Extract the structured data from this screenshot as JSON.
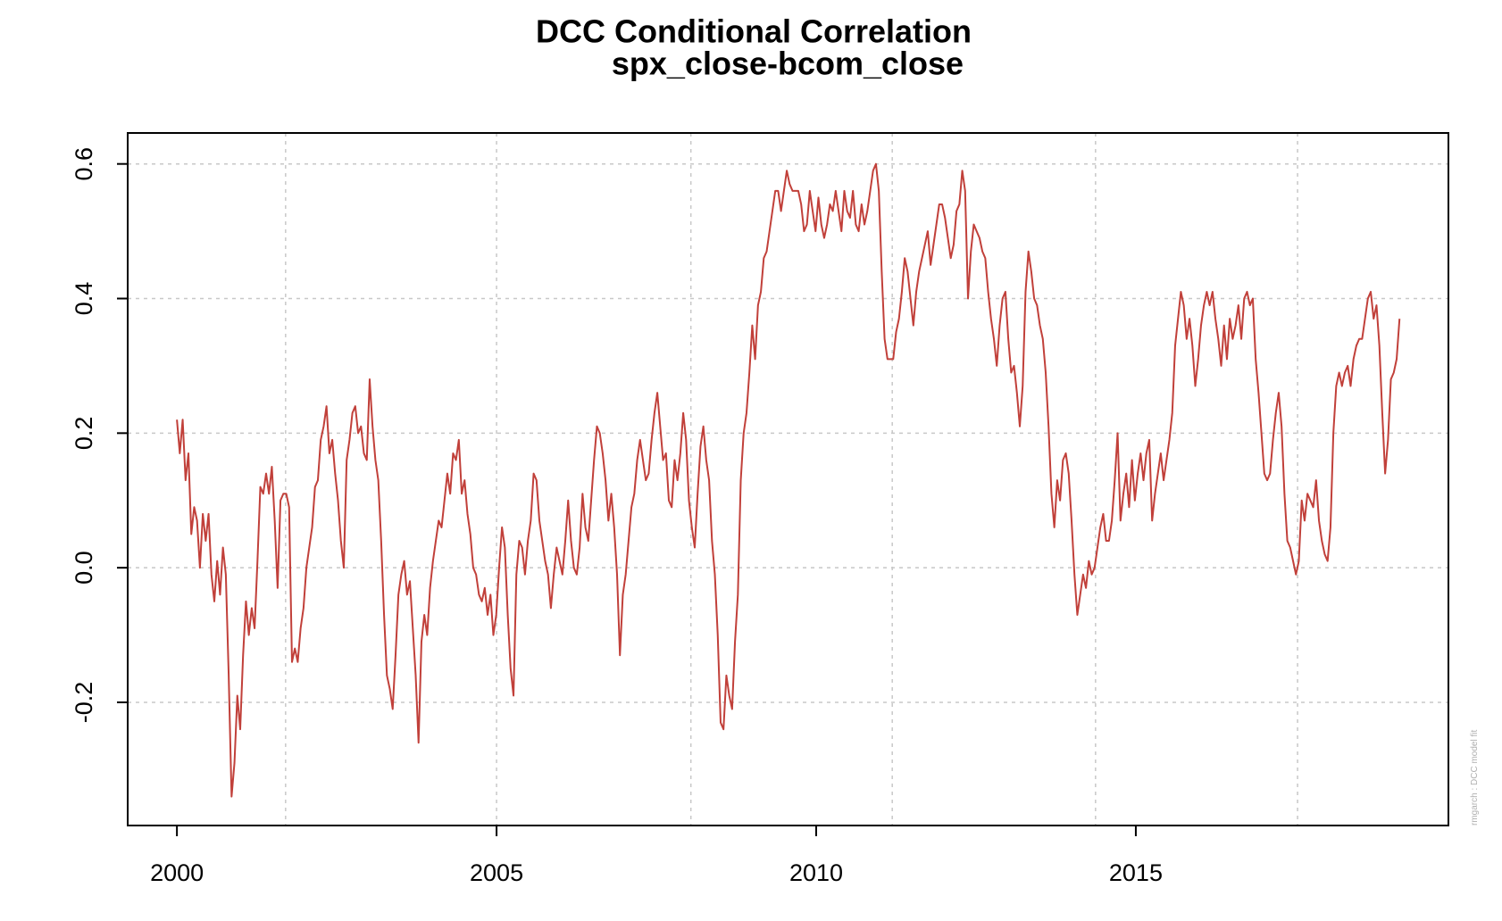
{
  "chart_data": {
    "type": "line",
    "title": "DCC Conditional Correlation",
    "subtitle": "spx_close-bcom_close",
    "annotation": "rmgarch  : DCC model fit",
    "xlim": [
      1999.23,
      2019.89
    ],
    "ylim": [
      -0.383,
      0.646
    ],
    "xticks": [
      2000,
      2005,
      2010,
      2015
    ],
    "yticks": [
      -0.2,
      {
        "value": 0,
        "label": "0.0"
      },
      0.2,
      0.4,
      0.6
    ],
    "x_grid_lines": [
      2001.7,
      2005,
      2008.04,
      2011.19,
      2014.37,
      2017.53
    ],
    "grid": true,
    "x": [
      2000,
      2000.045,
      2000.09,
      2000.135,
      2000.18,
      2000.225,
      2000.27,
      2000.315,
      2000.36,
      2000.405,
      2000.45,
      2000.495,
      2000.54,
      2000.585,
      2000.63,
      2000.675,
      2000.72,
      2000.765,
      2000.81,
      2000.855,
      2000.9,
      2000.945,
      2000.99,
      2001.035,
      2001.08,
      2001.125,
      2001.17,
      2001.215,
      2001.26,
      2001.305,
      2001.35,
      2001.395,
      2001.44,
      2001.485,
      2001.53,
      2001.575,
      2001.62,
      2001.665,
      2001.71,
      2001.755,
      2001.8,
      2001.845,
      2001.89,
      2001.935,
      2001.98,
      2002.025,
      2002.07,
      2002.115,
      2002.16,
      2002.205,
      2002.25,
      2002.295,
      2002.34,
      2002.385,
      2002.43,
      2002.475,
      2002.52,
      2002.565,
      2002.61,
      2002.655,
      2002.7,
      2002.745,
      2002.79,
      2002.835,
      2002.88,
      2002.925,
      2002.97,
      2003.015,
      2003.06,
      2003.105,
      2003.15,
      2003.195,
      2003.24,
      2003.285,
      2003.33,
      2003.375,
      2003.42,
      2003.465,
      2003.51,
      2003.555,
      2003.6,
      2003.645,
      2003.69,
      2003.735,
      2003.78,
      2003.825,
      2003.87,
      2003.915,
      2003.96,
      2004.005,
      2004.05,
      2004.095,
      2004.14,
      2004.185,
      2004.23,
      2004.275,
      2004.32,
      2004.365,
      2004.41,
      2004.455,
      2004.5,
      2004.545,
      2004.59,
      2004.635,
      2004.68,
      2004.725,
      2004.77,
      2004.815,
      2004.86,
      2004.905,
      2004.95,
      2004.995,
      2005.04,
      2005.085,
      2005.13,
      2005.175,
      2005.22,
      2005.265,
      2005.31,
      2005.355,
      2005.4,
      2005.445,
      2005.49,
      2005.535,
      2005.58,
      2005.625,
      2005.67,
      2005.715,
      2005.76,
      2005.805,
      2005.85,
      2005.895,
      2005.94,
      2005.985,
      2006.03,
      2006.075,
      2006.12,
      2006.165,
      2006.21,
      2006.255,
      2006.3,
      2006.345,
      2006.39,
      2006.435,
      2006.48,
      2006.525,
      2006.57,
      2006.615,
      2006.66,
      2006.705,
      2006.75,
      2006.795,
      2006.84,
      2006.885,
      2006.93,
      2006.975,
      2007.02,
      2007.065,
      2007.11,
      2007.155,
      2007.2,
      2007.245,
      2007.29,
      2007.335,
      2007.38,
      2007.425,
      2007.47,
      2007.515,
      2007.56,
      2007.605,
      2007.65,
      2007.695,
      2007.74,
      2007.785,
      2007.83,
      2007.875,
      2007.92,
      2007.965,
      2008.01,
      2008.055,
      2008.1,
      2008.145,
      2008.19,
      2008.235,
      2008.28,
      2008.325,
      2008.37,
      2008.415,
      2008.46,
      2008.505,
      2008.55,
      2008.595,
      2008.64,
      2008.685,
      2008.73,
      2008.775,
      2008.82,
      2008.865,
      2008.91,
      2008.955,
      2009,
      2009.045,
      2009.09,
      2009.135,
      2009.18,
      2009.225,
      2009.27,
      2009.315,
      2009.36,
      2009.405,
      2009.45,
      2009.495,
      2009.54,
      2009.585,
      2009.63,
      2009.675,
      2009.72,
      2009.765,
      2009.81,
      2009.855,
      2009.9,
      2009.945,
      2009.99,
      2010.035,
      2010.08,
      2010.125,
      2010.17,
      2010.215,
      2010.26,
      2010.305,
      2010.35,
      2010.395,
      2010.44,
      2010.485,
      2010.53,
      2010.575,
      2010.62,
      2010.665,
      2010.71,
      2010.755,
      2010.8,
      2010.845,
      2010.89,
      2010.935,
      2010.98,
      2011.025,
      2011.07,
      2011.115,
      2011.16,
      2011.205,
      2011.25,
      2011.295,
      2011.34,
      2011.385,
      2011.43,
      2011.475,
      2011.52,
      2011.565,
      2011.61,
      2011.655,
      2011.7,
      2011.745,
      2011.79,
      2011.835,
      2011.88,
      2011.925,
      2011.97,
      2012.015,
      2012.06,
      2012.105,
      2012.15,
      2012.195,
      2012.24,
      2012.285,
      2012.33,
      2012.375,
      2012.42,
      2012.465,
      2012.51,
      2012.555,
      2012.6,
      2012.645,
      2012.69,
      2012.735,
      2012.78,
      2012.825,
      2012.87,
      2012.915,
      2012.96,
      2013.005,
      2013.05,
      2013.095,
      2013.14,
      2013.185,
      2013.23,
      2013.275,
      2013.32,
      2013.365,
      2013.41,
      2013.455,
      2013.5,
      2013.545,
      2013.59,
      2013.635,
      2013.68,
      2013.725,
      2013.77,
      2013.815,
      2013.86,
      2013.905,
      2013.95,
      2013.995,
      2014.04,
      2014.085,
      2014.13,
      2014.175,
      2014.22,
      2014.265,
      2014.31,
      2014.355,
      2014.4,
      2014.445,
      2014.49,
      2014.535,
      2014.58,
      2014.625,
      2014.67,
      2014.715,
      2014.76,
      2014.805,
      2014.85,
      2014.895,
      2014.94,
      2014.985,
      2015.03,
      2015.075,
      2015.12,
      2015.165,
      2015.21,
      2015.255,
      2015.3,
      2015.345,
      2015.39,
      2015.435,
      2015.48,
      2015.525,
      2015.57,
      2015.615,
      2015.66,
      2015.705,
      2015.75,
      2015.795,
      2015.84,
      2015.885,
      2015.93,
      2015.975,
      2016.02,
      2016.065,
      2016.11,
      2016.155,
      2016.2,
      2016.245,
      2016.29,
      2016.335,
      2016.38,
      2016.425,
      2016.47,
      2016.515,
      2016.56,
      2016.605,
      2016.65,
      2016.695,
      2016.74,
      2016.785,
      2016.83,
      2016.875,
      2016.92,
      2016.965,
      2017.01,
      2017.055,
      2017.1,
      2017.145,
      2017.19,
      2017.235,
      2017.28,
      2017.325,
      2017.37,
      2017.415,
      2017.46,
      2017.505,
      2017.55,
      2017.595,
      2017.64,
      2017.685,
      2017.73,
      2017.775,
      2017.82,
      2017.865,
      2017.91,
      2017.955,
      2018,
      2018.045,
      2018.09,
      2018.135,
      2018.18,
      2018.225,
      2018.27,
      2018.315,
      2018.36,
      2018.405,
      2018.45,
      2018.495,
      2018.54,
      2018.585,
      2018.63,
      2018.675,
      2018.72,
      2018.765,
      2018.81,
      2018.855,
      2018.9,
      2018.945,
      2018.99,
      2019.035,
      2019.08,
      2019.125
    ],
    "series": [
      {
        "color": "#c1403a",
        "values": [
          0.22,
          0.17,
          0.22,
          0.13,
          0.17,
          0.05,
          0.09,
          0.07,
          0,
          0.08,
          0.04,
          0.08,
          -0.01,
          -0.05,
          0.01,
          -0.04,
          0.03,
          -0.01,
          -0.16,
          -0.34,
          -0.29,
          -0.19,
          -0.24,
          -0.13,
          -0.05,
          -0.1,
          -0.06,
          -0.09,
          0.01,
          0.12,
          0.11,
          0.14,
          0.11,
          0.15,
          0.07,
          -0.03,
          0.1,
          0.11,
          0.11,
          0.09,
          -0.14,
          -0.12,
          -0.14,
          -0.09,
          -0.06,
          0,
          0.03,
          0.06,
          0.12,
          0.13,
          0.19,
          0.21,
          0.24,
          0.17,
          0.19,
          0.14,
          0.1,
          0.04,
          0,
          0.16,
          0.19,
          0.23,
          0.24,
          0.2,
          0.21,
          0.17,
          0.16,
          0.28,
          0.21,
          0.16,
          0.13,
          0.04,
          -0.07,
          -0.16,
          -0.18,
          -0.21,
          -0.13,
          -0.04,
          -0.01,
          0.01,
          -0.04,
          -0.02,
          -0.09,
          -0.16,
          -0.26,
          -0.11,
          -0.07,
          -0.1,
          -0.03,
          0.01,
          0.04,
          0.07,
          0.06,
          0.1,
          0.14,
          0.11,
          0.17,
          0.16,
          0.19,
          0.11,
          0.13,
          0.08,
          0.05,
          0,
          -0.01,
          -0.04,
          -0.05,
          -0.03,
          -0.07,
          -0.04,
          -0.1,
          -0.07,
          0,
          0.06,
          0.03,
          -0.07,
          -0.15,
          -0.19,
          -0.01,
          0.04,
          0.03,
          -0.01,
          0.04,
          0.07,
          0.14,
          0.13,
          0.07,
          0.04,
          0.01,
          -0.01,
          -0.06,
          -0.01,
          0.03,
          0.01,
          -0.01,
          0.04,
          0.1,
          0.04,
          0,
          -0.01,
          0.03,
          0.11,
          0.06,
          0.04,
          0.1,
          0.16,
          0.21,
          0.2,
          0.17,
          0.13,
          0.07,
          0.11,
          0.06,
          -0.01,
          -0.13,
          -0.04,
          -0.01,
          0.04,
          0.09,
          0.11,
          0.16,
          0.19,
          0.16,
          0.13,
          0.14,
          0.19,
          0.23,
          0.26,
          0.21,
          0.16,
          0.17,
          0.1,
          0.09,
          0.16,
          0.13,
          0.17,
          0.23,
          0.19,
          0.1,
          0.06,
          0.03,
          0.11,
          0.18,
          0.21,
          0.16,
          0.13,
          0.04,
          -0.01,
          -0.1,
          -0.23,
          -0.24,
          -0.16,
          -0.19,
          -0.21,
          -0.11,
          -0.04,
          0.13,
          0.2,
          0.23,
          0.29,
          0.36,
          0.31,
          0.39,
          0.41,
          0.46,
          0.47,
          0.5,
          0.53,
          0.56,
          0.56,
          0.53,
          0.56,
          0.59,
          0.57,
          0.56,
          0.56,
          0.56,
          0.54,
          0.5,
          0.51,
          0.56,
          0.53,
          0.5,
          0.55,
          0.51,
          0.49,
          0.51,
          0.54,
          0.53,
          0.56,
          0.53,
          0.5,
          0.56,
          0.53,
          0.52,
          0.56,
          0.51,
          0.5,
          0.54,
          0.51,
          0.53,
          0.56,
          0.59,
          0.6,
          0.56,
          0.44,
          0.34,
          0.31,
          0.31,
          0.31,
          0.35,
          0.37,
          0.41,
          0.46,
          0.44,
          0.4,
          0.36,
          0.41,
          0.44,
          0.46,
          0.48,
          0.5,
          0.45,
          0.48,
          0.51,
          0.54,
          0.54,
          0.52,
          0.49,
          0.46,
          0.48,
          0.53,
          0.54,
          0.59,
          0.56,
          0.4,
          0.47,
          0.51,
          0.5,
          0.49,
          0.47,
          0.46,
          0.41,
          0.37,
          0.34,
          0.3,
          0.36,
          0.4,
          0.41,
          0.34,
          0.29,
          0.3,
          0.26,
          0.21,
          0.27,
          0.41,
          0.47,
          0.44,
          0.4,
          0.39,
          0.36,
          0.34,
          0.29,
          0.21,
          0.11,
          0.06,
          0.13,
          0.1,
          0.16,
          0.17,
          0.14,
          0.07,
          -0.01,
          -0.07,
          -0.04,
          -0.01,
          -0.03,
          0.01,
          -0.01,
          0,
          0.03,
          0.06,
          0.08,
          0.04,
          0.04,
          0.07,
          0.13,
          0.2,
          0.07,
          0.11,
          0.14,
          0.09,
          0.16,
          0.1,
          0.14,
          0.17,
          0.13,
          0.17,
          0.19,
          0.07,
          0.11,
          0.14,
          0.17,
          0.13,
          0.16,
          0.19,
          0.23,
          0.33,
          0.37,
          0.41,
          0.39,
          0.34,
          0.37,
          0.33,
          0.27,
          0.31,
          0.36,
          0.39,
          0.41,
          0.39,
          0.41,
          0.37,
          0.34,
          0.3,
          0.36,
          0.31,
          0.37,
          0.34,
          0.36,
          0.39,
          0.34,
          0.4,
          0.41,
          0.39,
          0.4,
          0.31,
          0.26,
          0.2,
          0.14,
          0.13,
          0.14,
          0.19,
          0.23,
          0.26,
          0.21,
          0.11,
          0.04,
          0.03,
          0.01,
          -0.01,
          0.01,
          0.1,
          0.07,
          0.11,
          0.1,
          0.09,
          0.13,
          0.07,
          0.04,
          0.02,
          0.01,
          0.06,
          0.2,
          0.27,
          0.29,
          0.27,
          0.29,
          0.3,
          0.27,
          0.31,
          0.33,
          0.34,
          0.34,
          0.37,
          0.4,
          0.41,
          0.37,
          0.39,
          0.33,
          0.23,
          0.14,
          0.19,
          0.28,
          0.29,
          0.31,
          0.37
        ]
      }
    ]
  }
}
